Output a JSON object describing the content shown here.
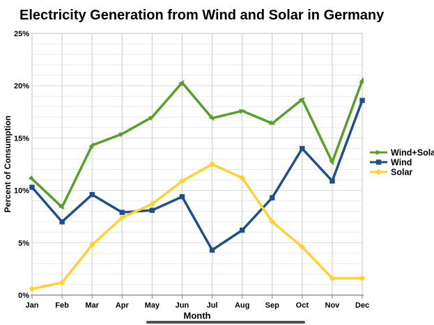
{
  "chart_data": {
    "type": "line",
    "title": "Electricity Generation from Wind and Solar in Germany",
    "xlabel": "Month",
    "ylabel": "Percent of Consumption",
    "ylim": [
      0,
      25
    ],
    "grid": "horizontal minor lines every 1%, vertical line at each month",
    "legend_position": "right-middle",
    "y_ticks": [
      {
        "v": 0,
        "label": "0%"
      },
      {
        "v": 5,
        "label": "5%"
      },
      {
        "v": 10,
        "label": "10%"
      },
      {
        "v": 15,
        "label": "15%"
      },
      {
        "v": 20,
        "label": "20%"
      },
      {
        "v": 25,
        "label": "25%"
      }
    ],
    "categories": [
      "Jan",
      "Feb",
      "Mar",
      "Apr",
      "May",
      "Jun",
      "Jul",
      "Aug",
      "Sep",
      "Oct",
      "Nov",
      "Dec"
    ],
    "series": [
      {
        "name": "Wind+Solar",
        "color": "#56a028",
        "marker": "arrow",
        "values": [
          11.1,
          8.4,
          14.3,
          15.4,
          17.0,
          20.3,
          16.9,
          17.6,
          16.4,
          18.7,
          12.7,
          20.5
        ]
      },
      {
        "name": "Wind",
        "color": "#1c4f8c",
        "marker": "square",
        "values": [
          10.3,
          7.0,
          9.6,
          7.9,
          8.1,
          9.4,
          4.3,
          6.2,
          9.3,
          14.0,
          10.9,
          18.6
        ]
      },
      {
        "name": "Solar",
        "color": "#ffd230",
        "marker": "diamond",
        "values": [
          0.6,
          1.2,
          4.8,
          7.4,
          8.7,
          10.9,
          12.5,
          11.2,
          7.0,
          4.6,
          1.6,
          1.6
        ]
      }
    ]
  },
  "style_colors": {
    "grid_minor": "#e9e9e9",
    "grid_major": "#dadada",
    "grid_vertical": "#c9c9c9",
    "plot_border": "#c6c6c6",
    "axis_line": "#7f7f7f",
    "text": "#000000",
    "background": "#ffffff"
  }
}
